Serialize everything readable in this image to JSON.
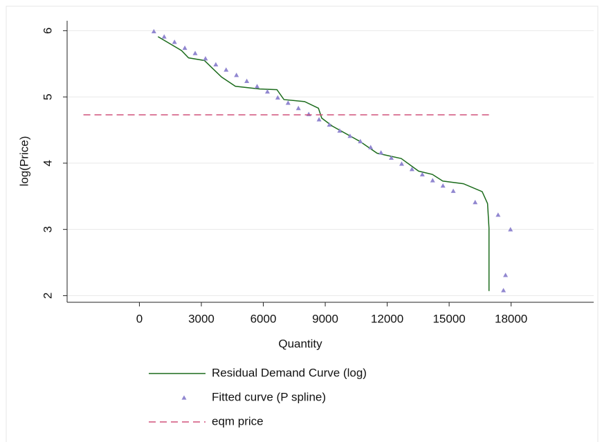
{
  "chart_data": {
    "type": "line",
    "x_label": "Quantity",
    "y_label": "log(Price)",
    "xlim": [
      -3500,
      22000
    ],
    "ylim": [
      1.9,
      6.15
    ],
    "xticks": [
      0,
      3000,
      6000,
      9000,
      12000,
      15000,
      18000
    ],
    "yticks": [
      2,
      3,
      4,
      5,
      6
    ],
    "grid": true,
    "series": [
      {
        "name": "Residual Demand Curve (log)",
        "type": "line",
        "color": "#1b6b1b",
        "x": [
          900,
          2040,
          2380,
          3150,
          3480,
          3980,
          4650,
          5820,
          6660,
          7000,
          8000,
          8670,
          8830,
          9340,
          10670,
          11510,
          12680,
          13520,
          14190,
          14690,
          15690,
          16600,
          16860,
          16930,
          16930
        ],
        "values": [
          5.91,
          5.7,
          5.59,
          5.55,
          5.45,
          5.3,
          5.16,
          5.12,
          5.11,
          4.96,
          4.93,
          4.83,
          4.68,
          4.56,
          4.33,
          4.15,
          4.07,
          3.88,
          3.83,
          3.73,
          3.69,
          3.57,
          3.39,
          3.02,
          2.07
        ]
      },
      {
        "name": "Fitted curve (P spline)",
        "type": "scatter",
        "color": "#9187d0",
        "x": [
          700,
          1200,
          1700,
          2200,
          2700,
          3200,
          3700,
          4200,
          4700,
          5200,
          5700,
          6200,
          6700,
          7200,
          7700,
          8200,
          8700,
          9200,
          9700,
          10200,
          10700,
          11200,
          11700,
          12200,
          12700,
          13200,
          13700,
          14200,
          14700,
          15200,
          16260,
          17370,
          17970,
          17730,
          17630
        ],
        "values": [
          5.99,
          5.91,
          5.83,
          5.74,
          5.66,
          5.58,
          5.49,
          5.41,
          5.33,
          5.24,
          5.16,
          5.08,
          4.99,
          4.91,
          4.83,
          4.74,
          4.66,
          4.58,
          4.49,
          4.41,
          4.33,
          4.24,
          4.16,
          4.08,
          3.99,
          3.91,
          3.83,
          3.74,
          3.66,
          3.58,
          3.41,
          3.22,
          3.0,
          2.31,
          2.08
        ]
      },
      {
        "name": "eqm price",
        "type": "line",
        "dashed": true,
        "color": "#d0507a",
        "x": [
          -2710,
          17030
        ],
        "values": [
          4.73,
          4.73
        ]
      }
    ]
  }
}
